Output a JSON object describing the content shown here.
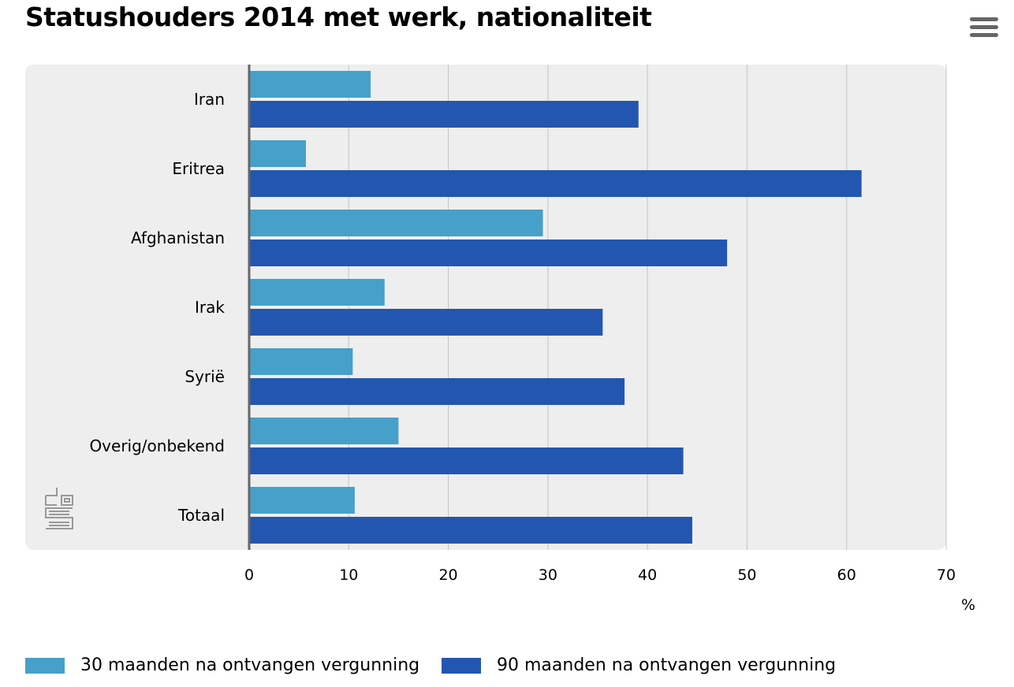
{
  "chart_data": {
    "type": "bar",
    "orientation": "horizontal",
    "title": "Statushouders 2014 met werk, nationaliteit",
    "categories": [
      "Iran",
      "Eritrea",
      "Afghanistan",
      "Irak",
      "Syrië",
      "Overig/onbekend",
      "Totaal"
    ],
    "series": [
      {
        "name": "30 maanden na ontvangen vergunning",
        "color": "#47a0ca",
        "values": [
          12.2,
          5.7,
          29.5,
          13.6,
          10.4,
          15.0,
          10.6
        ]
      },
      {
        "name": "90 maanden na ontvangen vergunning",
        "color": "#2356b0",
        "values": [
          39.1,
          61.5,
          48.0,
          35.5,
          37.7,
          43.6,
          44.5
        ]
      }
    ],
    "xlim": [
      0,
      70
    ],
    "xticks": [
      0,
      10,
      20,
      30,
      40,
      50,
      60,
      70
    ],
    "xlabel": "%",
    "grid": true,
    "legend_position": "bottom"
  },
  "icons": {
    "menu": "hamburger-menu-icon",
    "logo": "cbs-logo-icon"
  }
}
